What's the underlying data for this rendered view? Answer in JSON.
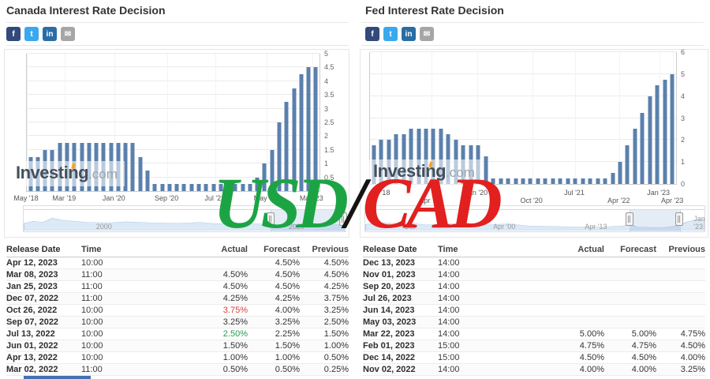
{
  "watermark": {
    "base": "USD",
    "slash": "/",
    "quote": "CAD",
    "base_color": "#1ca444",
    "slash_color": "#141414",
    "quote_color": "#e2201f"
  },
  "investing_logo": {
    "name": "Investing",
    "suffix": ".com",
    "accent_color": "#f6a623"
  },
  "bottom_bar": {
    "color": "#4470b4"
  },
  "panels": [
    {
      "title": "Canada Interest Rate Decision",
      "social": [
        {
          "name": "facebook",
          "glyph": "f",
          "color": "#33497c"
        },
        {
          "name": "twitter",
          "glyph": "t",
          "color": "#3aa8ee"
        },
        {
          "name": "linkedin",
          "glyph": "in",
          "color": "#2a6da5"
        },
        {
          "name": "email",
          "glyph": "✉",
          "color": "#a6a6a6"
        }
      ],
      "table": {
        "headers": [
          "Release Date",
          "Time",
          "Actual",
          "Forecast",
          "Previous"
        ],
        "rows": [
          {
            "date": "Apr 12, 2023",
            "time": "10:00",
            "actual": "",
            "forecast": "4.50%",
            "previous": "4.50%",
            "actual_color": ""
          },
          {
            "date": "Mar 08, 2023",
            "time": "11:00",
            "actual": "4.50%",
            "forecast": "4.50%",
            "previous": "4.50%",
            "actual_color": ""
          },
          {
            "date": "Jan 25, 2023",
            "time": "11:00",
            "actual": "4.50%",
            "forecast": "4.50%",
            "previous": "4.25%",
            "actual_color": ""
          },
          {
            "date": "Dec 07, 2022",
            "time": "11:00",
            "actual": "4.25%",
            "forecast": "4.25%",
            "previous": "3.75%",
            "actual_color": ""
          },
          {
            "date": "Oct 26, 2022",
            "time": "10:00",
            "actual": "3.75%",
            "forecast": "4.00%",
            "previous": "3.25%",
            "actual_color": "red"
          },
          {
            "date": "Sep 07, 2022",
            "time": "10:00",
            "actual": "3.25%",
            "forecast": "3.25%",
            "previous": "2.50%",
            "actual_color": ""
          },
          {
            "date": "Jul 13, 2022",
            "time": "10:00",
            "actual": "2.50%",
            "forecast": "2.25%",
            "previous": "1.50%",
            "actual_color": "green"
          },
          {
            "date": "Jun 01, 2022",
            "time": "10:00",
            "actual": "1.50%",
            "forecast": "1.50%",
            "previous": "1.00%",
            "actual_color": ""
          },
          {
            "date": "Apr 13, 2022",
            "time": "10:00",
            "actual": "1.00%",
            "forecast": "1.00%",
            "previous": "0.50%",
            "actual_color": ""
          },
          {
            "date": "Mar 02, 2022",
            "time": "11:00",
            "actual": "0.50%",
            "forecast": "0.50%",
            "previous": "0.25%",
            "actual_color": ""
          }
        ]
      }
    },
    {
      "title": "Fed Interest Rate Decision",
      "social": [
        {
          "name": "facebook",
          "glyph": "f",
          "color": "#33497c"
        },
        {
          "name": "twitter",
          "glyph": "t",
          "color": "#3aa8ee"
        },
        {
          "name": "linkedin",
          "glyph": "in",
          "color": "#2a6da5"
        },
        {
          "name": "email",
          "glyph": "✉",
          "color": "#a6a6a6"
        }
      ],
      "table": {
        "headers": [
          "Release Date",
          "Time",
          "Actual",
          "Forecast",
          "Previous"
        ],
        "rows": [
          {
            "date": "Dec 13, 2023",
            "time": "14:00",
            "actual": "",
            "forecast": "",
            "previous": "",
            "actual_color": ""
          },
          {
            "date": "Nov 01, 2023",
            "time": "14:00",
            "actual": "",
            "forecast": "",
            "previous": "",
            "actual_color": ""
          },
          {
            "date": "Sep 20, 2023",
            "time": "14:00",
            "actual": "",
            "forecast": "",
            "previous": "",
            "actual_color": ""
          },
          {
            "date": "Jul 26, 2023",
            "time": "14:00",
            "actual": "",
            "forecast": "",
            "previous": "",
            "actual_color": ""
          },
          {
            "date": "Jun 14, 2023",
            "time": "14:00",
            "actual": "",
            "forecast": "",
            "previous": "",
            "actual_color": ""
          },
          {
            "date": "May 03, 2023",
            "time": "14:00",
            "actual": "",
            "forecast": "",
            "previous": "",
            "actual_color": ""
          },
          {
            "date": "Mar 22, 2023",
            "time": "14:00",
            "actual": "5.00%",
            "forecast": "5.00%",
            "previous": "4.75%",
            "actual_color": ""
          },
          {
            "date": "Feb 01, 2023",
            "time": "15:00",
            "actual": "4.75%",
            "forecast": "4.75%",
            "previous": "4.50%",
            "actual_color": ""
          },
          {
            "date": "Dec 14, 2022",
            "time": "15:00",
            "actual": "4.50%",
            "forecast": "4.50%",
            "previous": "4.00%",
            "actual_color": ""
          },
          {
            "date": "Nov 02, 2022",
            "time": "14:00",
            "actual": "4.00%",
            "forecast": "4.00%",
            "previous": "3.25%",
            "actual_color": ""
          }
        ]
      }
    }
  ],
  "chart_data": [
    {
      "type": "bar",
      "title": "Canada Interest Rate Decision",
      "ylim": [
        0,
        5
      ],
      "y_ticks": [
        0.5,
        1,
        1.5,
        2,
        2.5,
        3,
        3.5,
        4,
        4.5,
        5
      ],
      "grid": true,
      "bar_color": "#5b80ac",
      "x_ticks": [
        {
          "label": "May '18",
          "pos": 0.0,
          "row": 1
        },
        {
          "label": "Mar '19",
          "pos": 0.13,
          "row": 1
        },
        {
          "label": "Jan '20",
          "pos": 0.3,
          "row": 1
        },
        {
          "label": "Sep '20",
          "pos": 0.48,
          "row": 1
        },
        {
          "label": "Jul '21",
          "pos": 0.645,
          "row": 1
        },
        {
          "label": "May '22",
          "pos": 0.82,
          "row": 1
        },
        {
          "label": "Mar '23",
          "pos": 0.975,
          "row": 1
        }
      ],
      "values": [
        1.25,
        1.25,
        1.5,
        1.5,
        1.75,
        1.75,
        1.75,
        1.75,
        1.75,
        1.75,
        1.75,
        1.75,
        1.75,
        1.75,
        1.75,
        1.25,
        0.75,
        0.25,
        0.25,
        0.25,
        0.25,
        0.25,
        0.25,
        0.25,
        0.25,
        0.25,
        0.25,
        0.25,
        0.25,
        0.25,
        0.25,
        0.5,
        1.0,
        1.5,
        2.5,
        3.25,
        3.75,
        4.25,
        4.5,
        4.5
      ],
      "navigator": {
        "labels": [
          {
            "text": "2000",
            "pos": 0.25
          },
          {
            "text": "2020",
            "pos": 0.85
          }
        ],
        "handles": [
          0.77,
          0.995
        ],
        "range": [
          0.77,
          0.995
        ]
      }
    },
    {
      "type": "bar",
      "title": "Fed Interest Rate Decision",
      "ylim": [
        0,
        6
      ],
      "y_ticks": [
        0,
        1,
        2,
        3,
        4,
        5,
        6
      ],
      "grid": true,
      "bar_color": "#5b80ac",
      "x_ticks": [
        {
          "label": "Jul '18",
          "pos": 0.035,
          "row": 1
        },
        {
          "label": "Apr '19",
          "pos": 0.2,
          "row": 2
        },
        {
          "label": "Jan '20",
          "pos": 0.35,
          "row": 1
        },
        {
          "label": "Oct '20",
          "pos": 0.53,
          "row": 2
        },
        {
          "label": "Jul '21",
          "pos": 0.67,
          "row": 1
        },
        {
          "label": "Apr '22",
          "pos": 0.815,
          "row": 2
        },
        {
          "label": "Jan '23",
          "pos": 0.945,
          "row": 1
        },
        {
          "label": "Apr '23",
          "pos": 0.99,
          "row": 2
        }
      ],
      "values": [
        1.75,
        2.0,
        2.0,
        2.25,
        2.25,
        2.5,
        2.5,
        2.5,
        2.5,
        2.5,
        2.25,
        2.0,
        1.75,
        1.75,
        1.75,
        1.25,
        0.25,
        0.25,
        0.25,
        0.25,
        0.25,
        0.25,
        0.25,
        0.25,
        0.25,
        0.25,
        0.25,
        0.25,
        0.25,
        0.25,
        0.25,
        0.25,
        0.5,
        1.0,
        1.75,
        2.5,
        3.25,
        4.0,
        4.5,
        4.75,
        5.0
      ],
      "navigator": {
        "labels": [
          {
            "text": "Oct",
            "pos": 0.13
          },
          {
            "text": "Apr '00",
            "pos": 0.41
          },
          {
            "text": "Apr '13",
            "pos": 0.68
          },
          {
            "text": "Jan '23",
            "pos": 0.985
          }
        ],
        "handles": [
          0.78,
          0.925
        ],
        "range": [
          0.78,
          0.925
        ]
      }
    }
  ]
}
